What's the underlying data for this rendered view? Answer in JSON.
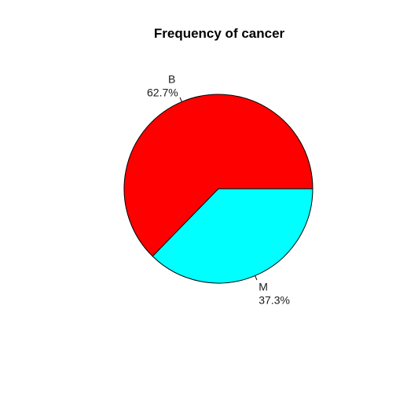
{
  "chart_data": {
    "type": "pie",
    "title": "Frequency of cancer",
    "slices": [
      {
        "label": "B",
        "percent_label": "62.7%",
        "value": 62.7,
        "color": "#ff0000"
      },
      {
        "label": "M",
        "percent_label": "37.3%",
        "value": 37.3,
        "color": "#00ffff"
      }
    ],
    "direction": "counterclockwise",
    "start_angle_deg": 0
  }
}
